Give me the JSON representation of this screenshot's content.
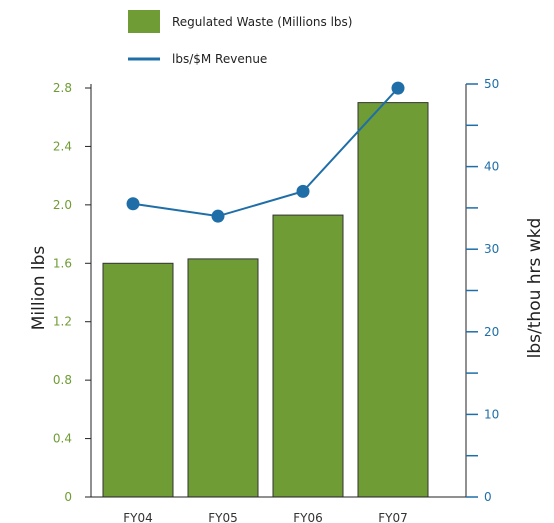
{
  "chart_data": {
    "type": "bar",
    "categories": [
      "FY04",
      "FY05",
      "FY06",
      "FY07"
    ],
    "series": [
      {
        "name": "Regulated Waste (Millions lbs)",
        "type": "bar",
        "axis": "left",
        "values": [
          1.6,
          1.63,
          1.93,
          2.7
        ],
        "color": "#6f9c35"
      },
      {
        "name": "lbs/$M Revenue",
        "type": "line",
        "axis": "right",
        "values": [
          35.5,
          34,
          37,
          49.5
        ],
        "color": "#1f6ea8"
      }
    ],
    "ylabel": "Million lbs",
    "y2label": "lbs/thou hrs wkd",
    "ylim": [
      0,
      2.8
    ],
    "y2lim": [
      0,
      50
    ],
    "yticks": [
      "0",
      "0.4",
      "0.8",
      "1.2",
      "1.6",
      "2.0",
      "2.4",
      "2.8"
    ],
    "y2ticks": [
      "0",
      "10",
      "20",
      "30",
      "40",
      "50"
    ],
    "legend_position": "top-center",
    "grid": false,
    "left_axis_color": "#6f9c35",
    "right_axis_color": "#1f6ea8"
  }
}
